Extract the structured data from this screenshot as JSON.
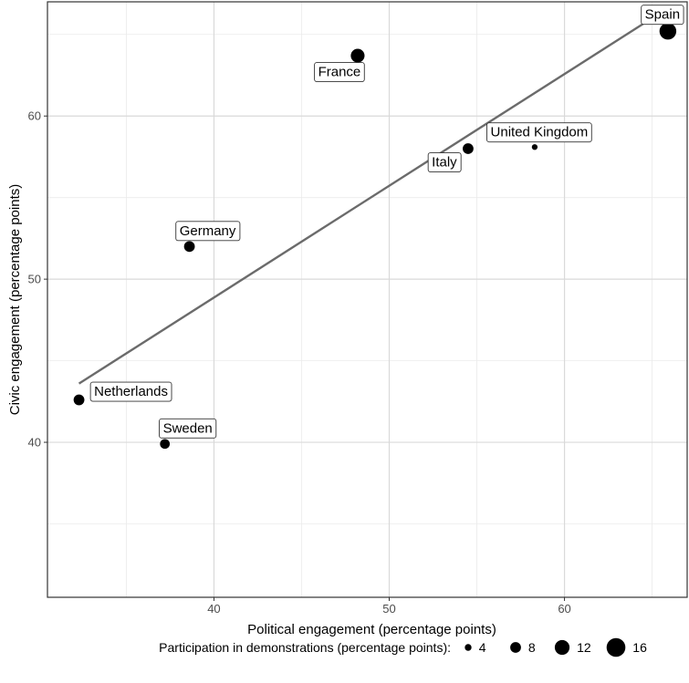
{
  "chart_data": {
    "type": "scatter",
    "xlabel": "Political engagement (percentage points)",
    "ylabel": "Civic engagement (percentage points)",
    "xlim": [
      30.5,
      67
    ],
    "ylim": [
      30.5,
      67
    ],
    "x_ticks": [
      40,
      50,
      60
    ],
    "y_ticks": [
      40,
      50,
      60
    ],
    "grid": true,
    "points": [
      {
        "label": "Spain",
        "x": 65.9,
        "y": 65.2,
        "size": 14
      },
      {
        "label": "France",
        "x": 48.2,
        "y": 63.7,
        "size": 11
      },
      {
        "label": "United Kingdom",
        "x": 58.3,
        "y": 58.1,
        "size": 3
      },
      {
        "label": "Italy",
        "x": 54.5,
        "y": 58.0,
        "size": 8
      },
      {
        "label": "Germany",
        "x": 38.6,
        "y": 52.0,
        "size": 8
      },
      {
        "label": "Netherlands",
        "x": 32.3,
        "y": 42.6,
        "size": 8
      },
      {
        "label": "Sweden",
        "x": 37.2,
        "y": 39.9,
        "size": 7
      }
    ],
    "fit_line": {
      "x": [
        32.3,
        65.0
      ],
      "y": [
        43.6,
        66.0
      ],
      "color": "#6b6b6b"
    },
    "legend": {
      "title": "Participation in demonstrations (percentage points):",
      "placement": "bottom",
      "entries": [
        {
          "label": "4",
          "size": 4
        },
        {
          "label": "8",
          "size": 8
        },
        {
          "label": "12",
          "size": 12
        },
        {
          "label": "16",
          "size": 16
        }
      ]
    },
    "colors": {
      "point": "#000000",
      "grid_major": "#d9d9d9",
      "grid_minor": "#ebebeb",
      "panel_border": "#333333"
    }
  }
}
